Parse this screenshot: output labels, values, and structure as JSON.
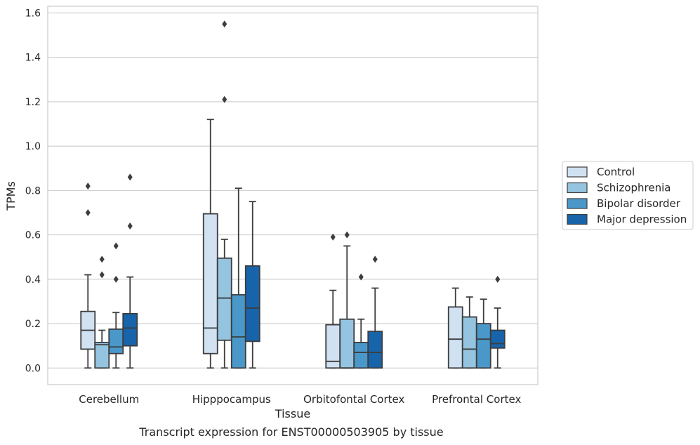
{
  "chart_data": {
    "type": "box",
    "title": "",
    "xlabel": "Tissue",
    "ylabel": "TPMs",
    "ylim": [
      -0.075,
      1.63
    ],
    "yticks": [
      0.0,
      0.2,
      0.4,
      0.6,
      0.8,
      1.0,
      1.2,
      1.4,
      1.6
    ],
    "grid": true,
    "legend_position": "right",
    "categories": [
      "Cerebellum",
      "Hipppocampus",
      "Orbitofontal Cortex",
      "Prefrontal Cortex"
    ],
    "series": [
      {
        "name": "Control",
        "color": "#d0e1f2",
        "boxes": [
          {
            "whisker_low": 0.0,
            "q1": 0.085,
            "median": 0.17,
            "q3": 0.255,
            "whisker_high": 0.42,
            "outliers": [
              0.7,
              0.82
            ]
          },
          {
            "whisker_low": 0.0,
            "q1": 0.065,
            "median": 0.18,
            "q3": 0.695,
            "whisker_high": 1.12,
            "outliers": []
          },
          {
            "whisker_low": 0.0,
            "q1": 0.0,
            "median": 0.03,
            "q3": 0.195,
            "whisker_high": 0.35,
            "outliers": [
              0.59
            ]
          },
          {
            "whisker_low": 0.0,
            "q1": 0.0,
            "median": 0.13,
            "q3": 0.275,
            "whisker_high": 0.36,
            "outliers": []
          }
        ]
      },
      {
        "name": "Schizophrenia",
        "color": "#94c4df",
        "boxes": [
          {
            "whisker_low": 0.0,
            "q1": 0.0,
            "median": 0.105,
            "q3": 0.115,
            "whisker_high": 0.17,
            "outliers": [
              0.42,
              0.49
            ]
          },
          {
            "whisker_low": 0.0,
            "q1": 0.125,
            "median": 0.315,
            "q3": 0.495,
            "whisker_high": 0.58,
            "outliers": [
              1.21,
              1.55
            ]
          },
          {
            "whisker_low": 0.0,
            "q1": 0.0,
            "median": 0.0,
            "q3": 0.22,
            "whisker_high": 0.55,
            "outliers": [
              0.6
            ]
          },
          {
            "whisker_low": 0.0,
            "q1": 0.0,
            "median": 0.085,
            "q3": 0.23,
            "whisker_high": 0.32,
            "outliers": []
          }
        ]
      },
      {
        "name": "Bipolar disorder",
        "color": "#4a98c9",
        "boxes": [
          {
            "whisker_low": 0.0,
            "q1": 0.065,
            "median": 0.095,
            "q3": 0.175,
            "whisker_high": 0.25,
            "outliers": [
              0.4,
              0.55
            ]
          },
          {
            "whisker_low": 0.0,
            "q1": 0.0,
            "median": 0.14,
            "q3": 0.33,
            "whisker_high": 0.81,
            "outliers": []
          },
          {
            "whisker_low": 0.0,
            "q1": 0.0,
            "median": 0.07,
            "q3": 0.115,
            "whisker_high": 0.22,
            "outliers": [
              0.41
            ]
          },
          {
            "whisker_low": 0.0,
            "q1": 0.0,
            "median": 0.13,
            "q3": 0.2,
            "whisker_high": 0.31,
            "outliers": []
          }
        ]
      },
      {
        "name": "Major depression",
        "color": "#1764ab",
        "boxes": [
          {
            "whisker_low": 0.0,
            "q1": 0.1,
            "median": 0.18,
            "q3": 0.245,
            "whisker_high": 0.41,
            "outliers": [
              0.64,
              0.86
            ]
          },
          {
            "whisker_low": 0.0,
            "q1": 0.12,
            "median": 0.27,
            "q3": 0.46,
            "whisker_high": 0.75,
            "outliers": []
          },
          {
            "whisker_low": 0.0,
            "q1": 0.0,
            "median": 0.07,
            "q3": 0.165,
            "whisker_high": 0.36,
            "outliers": [
              0.49
            ]
          },
          {
            "whisker_low": 0.0,
            "q1": 0.09,
            "median": 0.11,
            "q3": 0.17,
            "whisker_high": 0.27,
            "outliers": [
              0.4
            ]
          }
        ]
      }
    ],
    "caption": "Transcript expression for ENST00000503905 by tissue"
  }
}
